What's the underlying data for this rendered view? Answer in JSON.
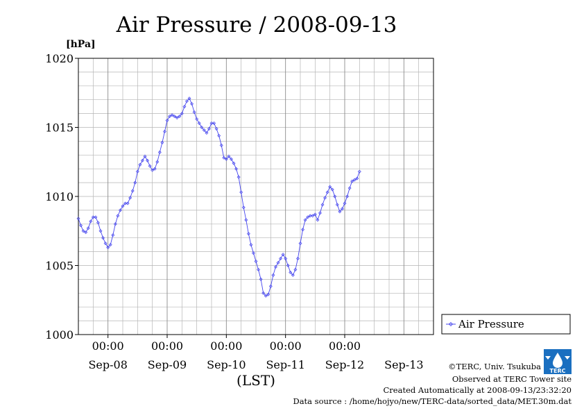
{
  "chart_data": {
    "type": "line",
    "title": "Air Pressure / 2008-09-13",
    "unit_label": "[hPa]",
    "xlabel": "(LST)",
    "ylim": [
      1000,
      1020
    ],
    "yticks": [
      1000,
      1005,
      1010,
      1015,
      1020
    ],
    "x_unit": "hours since 2008-09-07 12:00 LST",
    "xlim": [
      0,
      144
    ],
    "x_time_labels": [
      {
        "x": 12,
        "label": "00:00"
      },
      {
        "x": 36,
        "label": "00:00"
      },
      {
        "x": 60,
        "label": "00:00"
      },
      {
        "x": 84,
        "label": "00:00"
      },
      {
        "x": 108,
        "label": "00:00"
      }
    ],
    "x_date_labels": [
      {
        "x": 12,
        "label": "Sep-08"
      },
      {
        "x": 36,
        "label": "Sep-09"
      },
      {
        "x": 60,
        "label": "Sep-10"
      },
      {
        "x": 84,
        "label": "Sep-11"
      },
      {
        "x": 108,
        "label": "Sep-12"
      },
      {
        "x": 132,
        "label": "Sep-13"
      }
    ],
    "grid": true,
    "legend_position": "right",
    "series": [
      {
        "name": "Air Pressure",
        "color": "#4444ee",
        "marker": "diamond",
        "points": [
          [
            0,
            1008.4
          ],
          [
            1,
            1007.9
          ],
          [
            2,
            1007.5
          ],
          [
            3,
            1007.4
          ],
          [
            4,
            1007.7
          ],
          [
            5,
            1008.2
          ],
          [
            6,
            1008.5
          ],
          [
            7,
            1008.5
          ],
          [
            8,
            1008.1
          ],
          [
            9,
            1007.5
          ],
          [
            10,
            1007.0
          ],
          [
            11,
            1006.6
          ],
          [
            12,
            1006.3
          ],
          [
            13,
            1006.5
          ],
          [
            14,
            1007.2
          ],
          [
            15,
            1008.0
          ],
          [
            16,
            1008.6
          ],
          [
            17,
            1009.0
          ],
          [
            18,
            1009.3
          ],
          [
            19,
            1009.5
          ],
          [
            20,
            1009.5
          ],
          [
            21,
            1009.9
          ],
          [
            22,
            1010.4
          ],
          [
            23,
            1011.0
          ],
          [
            24,
            1011.8
          ],
          [
            25,
            1012.3
          ],
          [
            26,
            1012.6
          ],
          [
            27,
            1012.9
          ],
          [
            28,
            1012.6
          ],
          [
            29,
            1012.2
          ],
          [
            30,
            1011.9
          ],
          [
            31,
            1012.0
          ],
          [
            32,
            1012.5
          ],
          [
            33,
            1013.2
          ],
          [
            34,
            1013.9
          ],
          [
            35,
            1014.7
          ],
          [
            36,
            1015.5
          ],
          [
            37,
            1015.8
          ],
          [
            38,
            1015.9
          ],
          [
            39,
            1015.8
          ],
          [
            40,
            1015.7
          ],
          [
            41,
            1015.8
          ],
          [
            42,
            1016.0
          ],
          [
            43,
            1016.5
          ],
          [
            44,
            1016.9
          ],
          [
            45,
            1017.1
          ],
          [
            46,
            1016.7
          ],
          [
            47,
            1016.1
          ],
          [
            48,
            1015.6
          ],
          [
            49,
            1015.3
          ],
          [
            50,
            1015.0
          ],
          [
            51,
            1014.8
          ],
          [
            52,
            1014.6
          ],
          [
            53,
            1014.9
          ],
          [
            54,
            1015.3
          ],
          [
            55,
            1015.3
          ],
          [
            56,
            1014.9
          ],
          [
            57,
            1014.4
          ],
          [
            58,
            1013.7
          ],
          [
            59,
            1012.8
          ],
          [
            60,
            1012.7
          ],
          [
            61,
            1012.9
          ],
          [
            62,
            1012.7
          ],
          [
            63,
            1012.4
          ],
          [
            64,
            1012.0
          ],
          [
            65,
            1011.4
          ],
          [
            66,
            1010.3
          ],
          [
            67,
            1009.2
          ],
          [
            68,
            1008.3
          ],
          [
            69,
            1007.3
          ],
          [
            70,
            1006.5
          ],
          [
            71,
            1005.9
          ],
          [
            72,
            1005.3
          ],
          [
            73,
            1004.7
          ],
          [
            74,
            1004.0
          ],
          [
            75,
            1003.0
          ],
          [
            76,
            1002.8
          ],
          [
            77,
            1002.9
          ],
          [
            78,
            1003.5
          ],
          [
            79,
            1004.3
          ],
          [
            80,
            1004.9
          ],
          [
            81,
            1005.2
          ],
          [
            82,
            1005.5
          ],
          [
            83,
            1005.8
          ],
          [
            84,
            1005.5
          ],
          [
            85,
            1005.0
          ],
          [
            86,
            1004.5
          ],
          [
            87,
            1004.3
          ],
          [
            88,
            1004.7
          ],
          [
            89,
            1005.5
          ],
          [
            90,
            1006.6
          ],
          [
            91,
            1007.6
          ],
          [
            92,
            1008.3
          ],
          [
            93,
            1008.5
          ],
          [
            94,
            1008.6
          ],
          [
            95,
            1008.6
          ],
          [
            96,
            1008.7
          ],
          [
            97,
            1008.3
          ],
          [
            98,
            1008.8
          ],
          [
            99,
            1009.4
          ],
          [
            100,
            1009.9
          ],
          [
            101,
            1010.3
          ],
          [
            102,
            1010.7
          ],
          [
            103,
            1010.5
          ],
          [
            104,
            1010.0
          ],
          [
            105,
            1009.4
          ],
          [
            106,
            1008.9
          ],
          [
            107,
            1009.1
          ],
          [
            108,
            1009.5
          ],
          [
            109,
            1010.0
          ],
          [
            110,
            1010.6
          ],
          [
            111,
            1011.1
          ],
          [
            112,
            1011.2
          ],
          [
            113,
            1011.3
          ],
          [
            114,
            1011.8
          ]
        ]
      }
    ]
  },
  "legend": {
    "label": "Air Pressure"
  },
  "credits": {
    "copyright": "©TERC, Univ. Tsukuba",
    "observed": "Observed at TERC Tower site",
    "created": "Created Automatically at 2008-09-13/23:32:20",
    "source": "Data source : /home/hojyo/new/TERC-data/sorted_data/MET.30m.dat"
  },
  "logo": {
    "text": "TERC"
  }
}
